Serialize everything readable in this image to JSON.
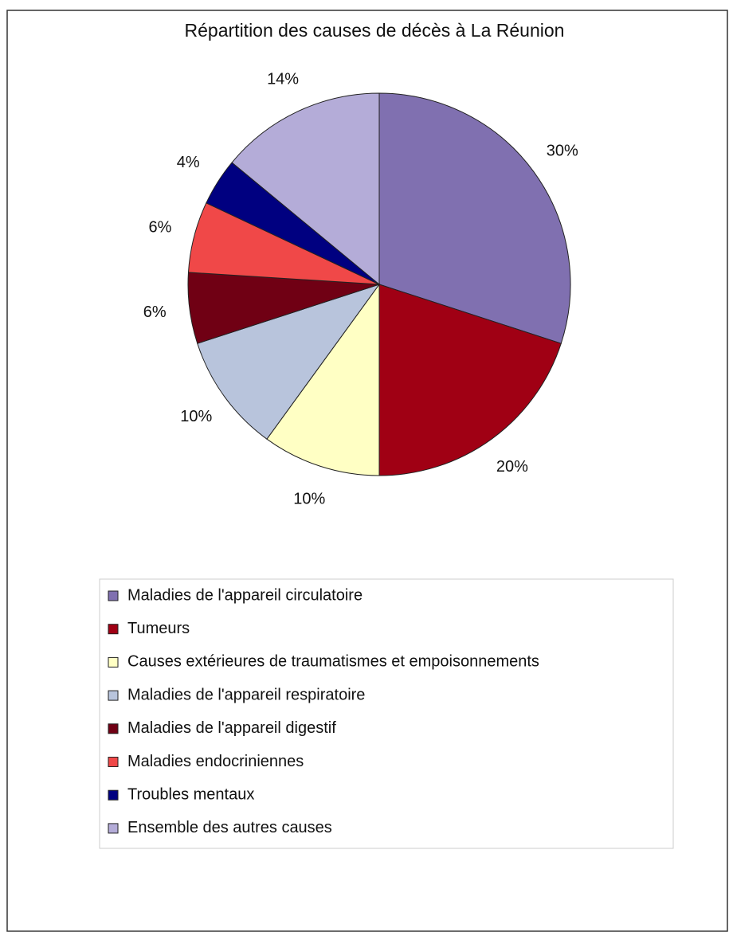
{
  "chart_data": {
    "type": "pie",
    "title": "Répartition des causes de décès à La Réunion",
    "categories": [
      "Maladies de l'appareil circulatoire",
      "Tumeurs",
      "Causes extérieures de traumatismes et empoisonnements",
      "Maladies de l'appareil respiratoire",
      "Maladies de l'appareil digestif",
      "Maladies endocriniennes",
      "Troubles mentaux",
      "Ensemble des autres causes"
    ],
    "values": [
      30,
      20,
      10,
      10,
      6,
      6,
      4,
      14
    ],
    "value_labels": [
      "30%",
      "20%",
      "10%",
      "10%",
      "6%",
      "6%",
      "4%",
      "14%"
    ],
    "colors": [
      "#8070b0",
      "#a00014",
      "#ffffc4",
      "#b8c4dc",
      "#700014",
      "#f04848",
      "#000080",
      "#b4acd8"
    ],
    "legend": "bottom"
  }
}
